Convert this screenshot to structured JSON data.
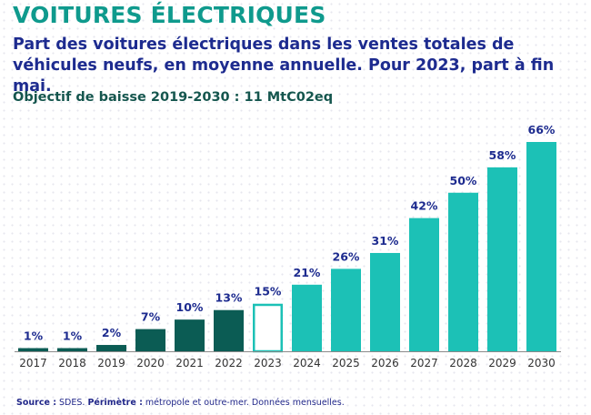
{
  "header": {
    "title": "VOITURES ÉLECTRIQUES",
    "subtitle": "Part des voitures électriques dans les ventes totales de véhicules neufs, en moyenne annuelle. Pour 2023, part à fin mai.",
    "objective": "Objectif de baisse 2019-2030 : 11 MtC02eq"
  },
  "footer": {
    "source_label": "Source :",
    "source_text": " SDES. ",
    "scope_label": "Périmètre :",
    "scope_text": " métropole et outre-mer. Données mensuelles."
  },
  "colors": {
    "historical": "#0b5c54",
    "current_outline": "#1cc1b6",
    "projection": "#1cc1b6",
    "value_label": "#1d2b8f",
    "axis": "#8a8a8a",
    "tick_label": "#333333"
  },
  "chart_data": {
    "type": "bar",
    "categories": [
      "2017",
      "2018",
      "2019",
      "2020",
      "2021",
      "2022",
      "2023",
      "2024",
      "2025",
      "2026",
      "2027",
      "2028",
      "2029",
      "2030"
    ],
    "values": [
      1,
      1,
      2,
      7,
      10,
      13,
      15,
      21,
      26,
      31,
      42,
      50,
      58,
      66
    ],
    "labels": [
      "1%",
      "1%",
      "2%",
      "7%",
      "10%",
      "13%",
      "15%",
      "21%",
      "26%",
      "31%",
      "42%",
      "50%",
      "58%",
      "66%"
    ],
    "styles": [
      "historical",
      "historical",
      "historical",
      "historical",
      "historical",
      "historical",
      "current",
      "projection",
      "projection",
      "projection",
      "projection",
      "projection",
      "projection",
      "projection"
    ],
    "title": "",
    "xlabel": "",
    "ylabel": "",
    "ylim": [
      0,
      66
    ],
    "grid": false,
    "legend": "none"
  }
}
